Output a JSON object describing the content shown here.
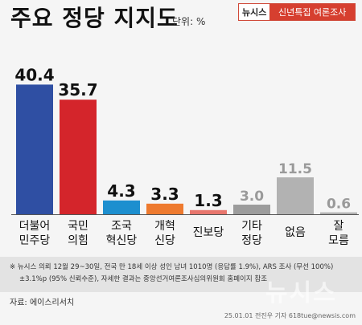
{
  "title": "주요 정당 지지도",
  "unit_label": "단위: %",
  "brand": {
    "name": "뉴시스",
    "series": "신년특집 여론조사"
  },
  "chart_data": {
    "type": "bar",
    "title": "주요 정당 지지도",
    "ylabel": "",
    "xlabel": "",
    "unit": "%",
    "ylim": [
      0,
      45
    ],
    "grid": false,
    "legend": "none",
    "categories": [
      [
        "더불어",
        "민주당"
      ],
      [
        "국민",
        "의힘"
      ],
      [
        "조국",
        "혁신당"
      ],
      [
        "개혁",
        "신당"
      ],
      [
        "진보당"
      ],
      [
        "기타",
        "정당"
      ],
      [
        "없음"
      ],
      [
        "잘",
        "모름"
      ]
    ],
    "values": [
      40.4,
      35.7,
      4.3,
      3.3,
      1.3,
      3.0,
      11.5,
      0.6
    ],
    "value_labels": [
      "40.4",
      "35.7",
      "4.3",
      "3.3",
      "1.3",
      "3.0",
      "11.5",
      "0.6"
    ],
    "colors": [
      "#2f4fa3",
      "#d4252b",
      "#1d8fcf",
      "#ee7a2f",
      "#e8766d",
      "#9c9c9c",
      "#b2b2b2",
      "#b2b2b2"
    ],
    "label_colors": [
      "#111111",
      "#111111",
      "#111111",
      "#111111",
      "#111111",
      "#9a9a9a",
      "#9a9a9a",
      "#9a9a9a"
    ]
  },
  "footnote": {
    "line1": "※ 뉴시스 의뢰 12월 29~30일, 전국 만 18세 이상 성인 남녀 1010명 (응답률 1.9%), ARS 조사 (무선 100%)",
    "line2": "±3.1%p (95% 신뢰수준), 자세한 결과는 중앙선거여론조사심의위원회 홈페이지 참조"
  },
  "source": "자료: 에이스리서치",
  "watermark": "뉴시스",
  "credit": "25.01.01 전진우 기자 618tue@newsis.com"
}
